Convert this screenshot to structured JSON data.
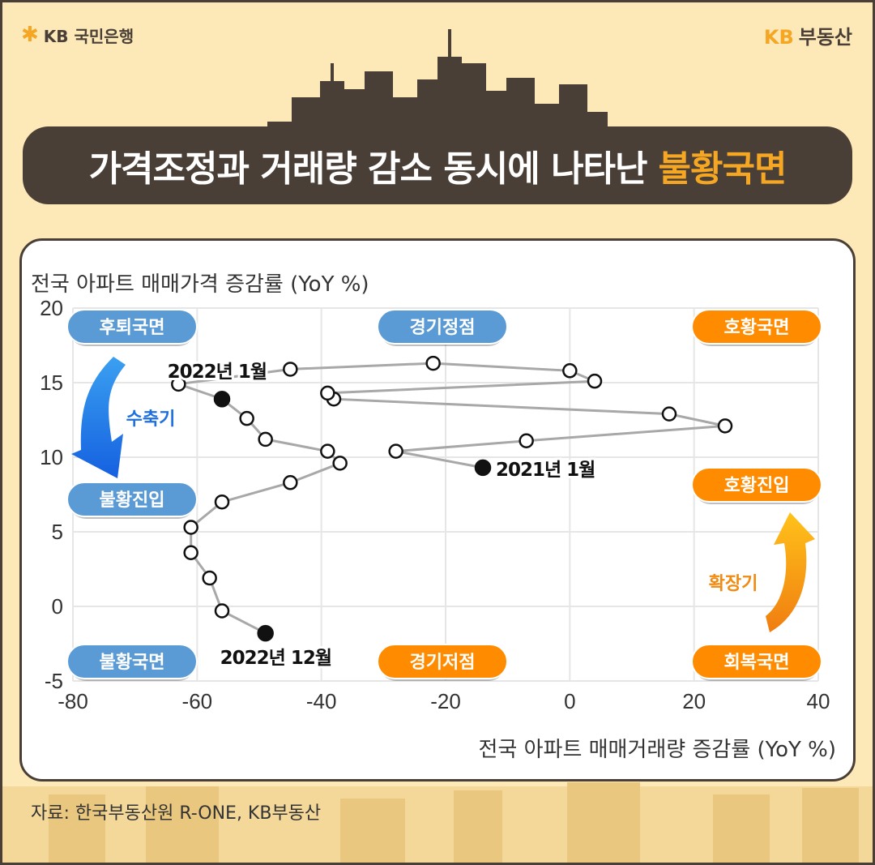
{
  "header": {
    "bank_logo": "KB 국민은행",
    "brand_kb": "KB",
    "brand_name": "부동산",
    "title_main": "가격조정과 거래량 감소 동시에 나타난",
    "title_highlight": "불황국면"
  },
  "source": "자료: 한국부동산원 R-ONE, KB부동산",
  "colors": {
    "accent": "#f5a623",
    "dark": "#4a3f36",
    "blue_pill": "#5b9bd5",
    "orange_pill": "#ff8c00"
  },
  "chart_data": {
    "type": "scatter",
    "xlabel": "전국 아파트 매매거래량 증감률 (YoY %)",
    "ylabel": "전국 아파트 매매가격 증감률 (YoY %)",
    "xlim": [
      -80,
      40
    ],
    "ylim": [
      -5,
      20
    ],
    "x_ticks": [
      "-80",
      "-60",
      "-40",
      "-20",
      "0",
      "20",
      "40"
    ],
    "y_ticks": [
      "20",
      "15",
      "10",
      "5",
      "0",
      "-5"
    ],
    "grid": true,
    "series": [
      {
        "points": [
          {
            "x": -14,
            "y": 9.3,
            "filled": true
          },
          {
            "x": -28,
            "y": 10.4
          },
          {
            "x": -7,
            "y": 11.1
          },
          {
            "x": 25,
            "y": 12.1
          },
          {
            "x": 16,
            "y": 12.9
          },
          {
            "x": -38,
            "y": 13.9
          },
          {
            "x": -39,
            "y": 14.3
          },
          {
            "x": 4,
            "y": 15.1
          },
          {
            "x": 0,
            "y": 15.8
          },
          {
            "x": -22,
            "y": 16.3
          },
          {
            "x": -45,
            "y": 15.9
          },
          {
            "x": -63,
            "y": 14.9
          },
          {
            "x": -56,
            "y": 13.9,
            "filled": true
          },
          {
            "x": -52,
            "y": 12.6
          },
          {
            "x": -49,
            "y": 11.2
          },
          {
            "x": -39,
            "y": 10.4
          },
          {
            "x": -37,
            "y": 9.6
          },
          {
            "x": -45,
            "y": 8.3
          },
          {
            "x": -56,
            "y": 7.0
          },
          {
            "x": -61,
            "y": 5.3
          },
          {
            "x": -61,
            "y": 3.6
          },
          {
            "x": -58,
            "y": 1.9
          },
          {
            "x": -56,
            "y": -0.3
          },
          {
            "x": -49,
            "y": -1.8,
            "filled": true
          }
        ]
      }
    ],
    "annotations": [
      {
        "text": "2021년 1월",
        "at": 0
      },
      {
        "text": "2022년 1월",
        "at": 12
      },
      {
        "text": "2022년 12월",
        "at": 23
      }
    ],
    "phase_labels": {
      "top_left": "후퇴국면",
      "top_center": "경기정점",
      "top_right": "호황국면",
      "mid_left": "불황진입",
      "mid_right": "호황진입",
      "bottom_left": "불황국면",
      "bottom_center": "경기저점",
      "bottom_right": "회복국면"
    },
    "arrows": {
      "left": "수축기",
      "right": "확장기"
    }
  }
}
